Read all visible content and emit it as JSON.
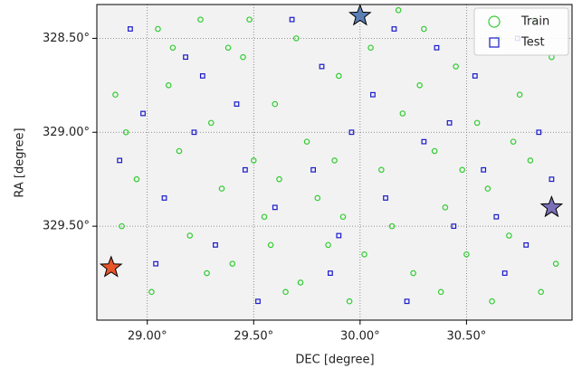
{
  "chart_data": {
    "type": "scatter",
    "x_label": "DEC [degree]",
    "y_label": "RA [degree]",
    "xlim": [
      28.763,
      30.996
    ],
    "ylim": [
      328.32,
      330.0
    ],
    "invert_y": true,
    "grid": true,
    "legend": "upper right",
    "xticks": [
      {
        "value": 29,
        "label": "29.00°"
      },
      {
        "value": 29.5,
        "label": "29.50°"
      },
      {
        "value": 30,
        "label": "30.00°"
      },
      {
        "value": 30.5,
        "label": "30.50°"
      }
    ],
    "yticks": [
      {
        "value": 328.5,
        "label": "328.50°"
      },
      {
        "value": 329,
        "label": "329.00°"
      },
      {
        "value": 329.5,
        "label": "329.50°"
      }
    ],
    "series": [
      {
        "name": "Train",
        "color": "#33cc33",
        "marker": "circle",
        "x": [
          28.85,
          28.9,
          28.95,
          29.05,
          29.1,
          29.15,
          29.2,
          29.25,
          29.3,
          29.35,
          29.4,
          29.45,
          29.5,
          29.55,
          29.6,
          29.65,
          29.7,
          29.75,
          29.8,
          29.85,
          29.9,
          29.95,
          30.05,
          30.1,
          30.15,
          30.2,
          30.25,
          30.3,
          30.35,
          30.4,
          30.45,
          30.5,
          30.55,
          30.6,
          30.65,
          30.7,
          30.75,
          30.8,
          30.85,
          30.9,
          28.88,
          29.02,
          29.28,
          29.48,
          29.62,
          29.88,
          30.02,
          30.28,
          30.48,
          30.72,
          30.92,
          29.12,
          29.72,
          30.18,
          30.62,
          29.38,
          29.92,
          30.38,
          30.82,
          29.58
        ],
        "values": [
          328.8,
          329.0,
          329.25,
          328.45,
          328.75,
          329.1,
          329.55,
          328.4,
          328.95,
          329.3,
          329.7,
          328.6,
          329.15,
          329.45,
          328.85,
          329.85,
          328.5,
          329.05,
          329.35,
          329.6,
          328.7,
          329.9,
          328.55,
          329.2,
          329.5,
          328.9,
          329.75,
          328.45,
          329.1,
          329.4,
          328.65,
          329.65,
          328.95,
          329.3,
          328.5,
          329.55,
          328.8,
          329.15,
          329.85,
          328.6,
          329.5,
          329.85,
          329.75,
          328.4,
          329.25,
          329.15,
          329.65,
          328.75,
          329.2,
          329.05,
          329.7,
          328.55,
          329.8,
          328.35,
          329.9,
          328.55,
          329.45,
          329.85,
          328.4,
          329.6
        ]
      },
      {
        "name": "Test",
        "color": "#1a1acc",
        "marker": "square",
        "x": [
          28.87,
          28.98,
          29.08,
          29.18,
          29.22,
          29.32,
          29.42,
          29.52,
          29.6,
          29.68,
          29.78,
          29.82,
          29.9,
          29.96,
          30.06,
          30.12,
          30.22,
          30.3,
          30.36,
          30.44,
          30.54,
          30.58,
          30.68,
          30.74,
          30.84,
          30.9,
          29.04,
          29.46,
          30.16,
          30.64,
          29.26,
          29.86,
          30.42,
          28.92,
          30.78
        ],
        "values": [
          329.15,
          328.9,
          329.35,
          328.6,
          329.0,
          329.6,
          328.85,
          329.9,
          329.4,
          328.4,
          329.2,
          328.65,
          329.55,
          329.0,
          328.8,
          329.35,
          329.9,
          329.05,
          328.55,
          329.5,
          328.7,
          329.2,
          329.75,
          328.5,
          329.0,
          329.25,
          329.7,
          329.2,
          328.45,
          329.45,
          328.7,
          329.75,
          328.95,
          328.45,
          329.6
        ]
      }
    ],
    "highlights": [
      {
        "x": 28.83,
        "y": 329.72,
        "color": "#e8552a"
      },
      {
        "x": 30.0,
        "y": 328.38,
        "color": "#5b7fb5"
      },
      {
        "x": 30.9,
        "y": 329.4,
        "color": "#7a70b8"
      }
    ]
  }
}
